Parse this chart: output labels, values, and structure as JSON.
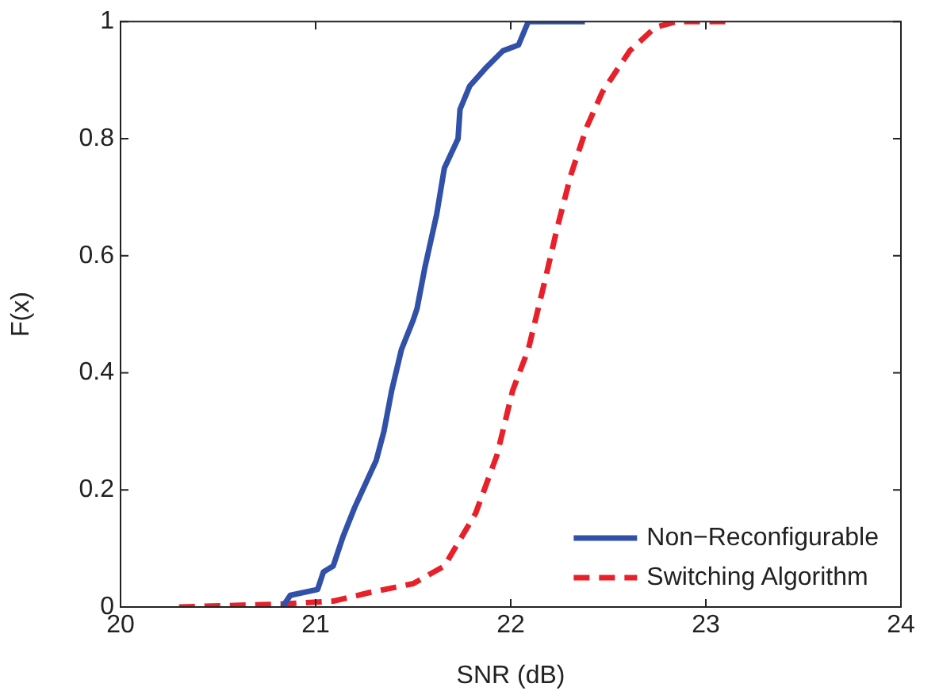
{
  "chart_data": {
    "type": "line",
    "xlabel": "SNR (dB)",
    "ylabel": "F(x)",
    "xlim": [
      20,
      24
    ],
    "xticks": [
      20,
      21,
      22,
      23,
      24
    ],
    "ylim": [
      0,
      1
    ],
    "yticks": [
      0,
      0.2,
      0.4,
      0.6,
      0.8,
      1
    ],
    "grid": false,
    "legend": "bottom right",
    "marker": "none",
    "series": [
      {
        "name": "Non−Reconfigurable",
        "color": "#3150a8",
        "line_style": "solid",
        "x": [
          20.83,
          20.87,
          21.01,
          21.04,
          21.09,
          21.14,
          21.2,
          21.31,
          21.35,
          21.39,
          21.44,
          21.5,
          21.52,
          21.56,
          21.62,
          21.66,
          21.73,
          21.74,
          21.79,
          21.87,
          21.96,
          22.04,
          22.09,
          22.38
        ],
        "values": [
          0,
          0.02,
          0.03,
          0.06,
          0.07,
          0.12,
          0.17,
          0.25,
          0.3,
          0.37,
          0.44,
          0.49,
          0.51,
          0.58,
          0.67,
          0.75,
          0.8,
          0.85,
          0.89,
          0.92,
          0.95,
          0.96,
          1,
          1
        ]
      },
      {
        "name": "Switching Algorithm",
        "color": "#e8202a",
        "line_style": "dashed",
        "x": [
          20.3,
          20.82,
          21.09,
          21.28,
          21.5,
          21.66,
          21.82,
          21.93,
          22.01,
          22.09,
          22.17,
          22.24,
          22.31,
          22.39,
          22.47,
          22.61,
          22.74,
          22.85,
          23.12
        ],
        "values": [
          0,
          0.005,
          0.01,
          0.025,
          0.04,
          0.07,
          0.16,
          0.26,
          0.37,
          0.44,
          0.55,
          0.65,
          0.74,
          0.82,
          0.88,
          0.95,
          0.99,
          1,
          1
        ]
      }
    ]
  }
}
